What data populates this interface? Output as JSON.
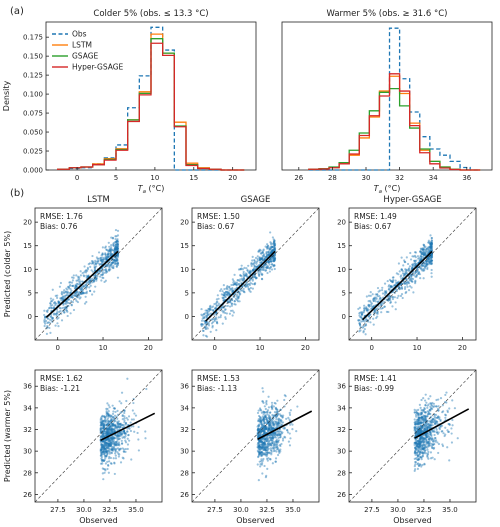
{
  "chart_data": [
    {
      "id": "hist-cold",
      "type": "histogram",
      "panel_label": "(a)",
      "title": "Colder 5% (obs. ≤ 13.3 °C)",
      "xlabel": "T_a (°C)",
      "ylabel": "Density",
      "xlim": [
        -4,
        23
      ],
      "ylim": [
        0,
        0.195
      ],
      "xticks": [
        0,
        5,
        10,
        15,
        20
      ],
      "yticks": [
        0,
        0.025,
        0.05,
        0.075,
        0.1,
        0.125,
        0.15,
        0.175
      ],
      "ytick_labels": [
        "0.000",
        "0.025",
        "0.050",
        "0.075",
        "0.100",
        "0.125",
        "0.150",
        "0.175"
      ],
      "bins": [
        -2.5,
        -1,
        0.5,
        2,
        3.5,
        5,
        6.5,
        8,
        9.5,
        11,
        12.5,
        14,
        15.5,
        17,
        18.5,
        20,
        21.5
      ],
      "legend": [
        "Obs",
        "LSTM",
        "GSAGE",
        "Hyper-GSAGE"
      ],
      "series": [
        {
          "name": "Obs",
          "color": "#1f77b4",
          "dashed": true,
          "values": [
            0.001,
            0.002,
            0.003,
            0.008,
            0.016,
            0.033,
            0.082,
            0.124,
            0.188,
            0.158,
            0,
            0,
            0,
            0,
            0,
            0
          ]
        },
        {
          "name": "LSTM",
          "color": "#ff7f0e",
          "dashed": false,
          "values": [
            0.001,
            0.003,
            0.004,
            0.008,
            0.015,
            0.028,
            0.066,
            0.103,
            0.179,
            0.154,
            0.063,
            0.009,
            0.003,
            0.001,
            0,
            0
          ]
        },
        {
          "name": "GSAGE",
          "color": "#2ca02c",
          "dashed": false,
          "values": [
            0.001,
            0.003,
            0.004,
            0.007,
            0.014,
            0.027,
            0.066,
            0.101,
            0.173,
            0.154,
            0.058,
            0.007,
            0.002,
            0.001,
            0,
            0
          ]
        },
        {
          "name": "Hyper-GSAGE",
          "color": "#d62728",
          "dashed": false,
          "values": [
            0.001,
            0.003,
            0.004,
            0.007,
            0.013,
            0.026,
            0.064,
            0.099,
            0.167,
            0.151,
            0.057,
            0.006,
            0.002,
            0.001,
            0,
            0
          ]
        }
      ]
    },
    {
      "id": "hist-warm",
      "type": "histogram",
      "title": "Warmer 5% (obs. ≥ 31.6 °C)",
      "xlabel": "T_a (°C)",
      "xlim": [
        25,
        37.5
      ],
      "ylim": [
        0,
        0.6
      ],
      "xticks": [
        26,
        28,
        30,
        32,
        34,
        36
      ],
      "bins": [
        26.6,
        27.2,
        27.8,
        28.4,
        29,
        29.6,
        30.2,
        30.8,
        31.4,
        32,
        32.6,
        33.2,
        33.8,
        34.4,
        35,
        35.6,
        36.2,
        36.8
      ],
      "series": [
        {
          "name": "Obs",
          "color": "#1f77b4",
          "dashed": true,
          "values": [
            0,
            0,
            0,
            0,
            0,
            0,
            0,
            0,
            0.575,
            0.37,
            0.235,
            0.135,
            0.085,
            0.06,
            0.035,
            0.01,
            0
          ]
        },
        {
          "name": "LSTM",
          "color": "#ff7f0e",
          "dashed": false,
          "values": [
            0.003,
            0.005,
            0.01,
            0.025,
            0.06,
            0.13,
            0.215,
            0.32,
            0.38,
            0.31,
            0.19,
            0.08,
            0.035,
            0.012,
            0.003,
            0,
            0
          ]
        },
        {
          "name": "GSAGE",
          "color": "#2ca02c",
          "dashed": false,
          "values": [
            0.003,
            0.005,
            0.012,
            0.03,
            0.08,
            0.15,
            0.24,
            0.315,
            0.33,
            0.26,
            0.17,
            0.085,
            0.035,
            0.012,
            0.003,
            0,
            0
          ]
        },
        {
          "name": "Hyper-GSAGE",
          "color": "#d62728",
          "dashed": false,
          "values": [
            0.003,
            0.004,
            0.009,
            0.025,
            0.065,
            0.14,
            0.22,
            0.3,
            0.39,
            0.32,
            0.18,
            0.07,
            0.025,
            0.008,
            0.002,
            0,
            0
          ]
        }
      ]
    },
    {
      "id": "sc-lstm-cold",
      "type": "scatter",
      "panel_label": "(b)",
      "title": "LSTM",
      "ylabel": "Predicted (colder 5%)",
      "xlim": [
        -5,
        23
      ],
      "ylim": [
        -5,
        23
      ],
      "xticks": [
        0,
        10,
        20
      ],
      "yticks": [
        0,
        5,
        10,
        15,
        20
      ],
      "rmse_label": "RMSE: 1.76",
      "bias_label": "Bias: 0.76",
      "obs_range": [
        -3,
        13.3
      ],
      "fit": {
        "x": [
          -2.5,
          13.3
        ],
        "y": [
          -0.2,
          13.8
        ]
      },
      "point_color": "#1f77b4"
    },
    {
      "id": "sc-gsage-cold",
      "type": "scatter",
      "title": "GSAGE",
      "xlim": [
        -5,
        23
      ],
      "ylim": [
        -5,
        23
      ],
      "xticks": [
        0,
        10,
        20
      ],
      "yticks": [
        0,
        5,
        10,
        15,
        20
      ],
      "rmse_label": "RMSE: 1.50",
      "bias_label": "Bias: 0.67",
      "obs_range": [
        -3,
        13.3
      ],
      "fit": {
        "x": [
          -2,
          13.3
        ],
        "y": [
          -1,
          13.8
        ]
      },
      "point_color": "#1f77b4"
    },
    {
      "id": "sc-hyper-cold",
      "type": "scatter",
      "title": "Hyper-GSAGE",
      "xlim": [
        -5,
        23
      ],
      "ylim": [
        -5,
        23
      ],
      "xticks": [
        0,
        10,
        20
      ],
      "yticks": [
        0,
        5,
        10,
        15,
        20
      ],
      "rmse_label": "RMSE: 1.49",
      "bias_label": "Bias: 0.67",
      "obs_range": [
        -3,
        13.3
      ],
      "fit": {
        "x": [
          -2,
          13.3
        ],
        "y": [
          -0.7,
          13.8
        ]
      },
      "point_color": "#1f77b4"
    },
    {
      "id": "sc-lstm-warm",
      "type": "scatter",
      "ylabel": "Predicted (warmer 5%)",
      "xlabel": "Observed",
      "xlim": [
        25.3,
        37.5
      ],
      "ylim": [
        25.3,
        37.5
      ],
      "xticks": [
        27.5,
        30,
        32.5,
        35
      ],
      "yticks": [
        26,
        28,
        30,
        32,
        34,
        36
      ],
      "xtick_labels": [
        "27.5",
        "30.0",
        "32.5",
        "35.0"
      ],
      "rmse_label": "RMSE: 1.62",
      "bias_label": "Bias: -1.21",
      "obs_range": [
        31.6,
        36.8
      ],
      "fit": {
        "x": [
          31.6,
          36.8
        ],
        "y": [
          31,
          33.5
        ]
      },
      "point_color": "#1f77b4"
    },
    {
      "id": "sc-gsage-warm",
      "type": "scatter",
      "xlabel": "Observed",
      "xlim": [
        25.3,
        37.5
      ],
      "ylim": [
        25.3,
        37.5
      ],
      "xticks": [
        27.5,
        30,
        32.5,
        35
      ],
      "yticks": [
        26,
        28,
        30,
        32,
        34,
        36
      ],
      "xtick_labels": [
        "27.5",
        "30.0",
        "32.5",
        "35.0"
      ],
      "rmse_label": "RMSE: 1.53",
      "bias_label": "Bias: -1.13",
      "obs_range": [
        31.6,
        36.8
      ],
      "fit": {
        "x": [
          31.6,
          36.8
        ],
        "y": [
          31.1,
          33.7
        ]
      },
      "point_color": "#1f77b4"
    },
    {
      "id": "sc-hyper-warm",
      "type": "scatter",
      "xlabel": "Observed",
      "xlim": [
        25.3,
        37.5
      ],
      "ylim": [
        25.3,
        37.5
      ],
      "xticks": [
        27.5,
        30,
        32.5,
        35
      ],
      "yticks": [
        26,
        28,
        30,
        32,
        34,
        36
      ],
      "xtick_labels": [
        "27.5",
        "30.0",
        "32.5",
        "35.0"
      ],
      "rmse_label": "RMSE: 1.41",
      "bias_label": "Bias: -0.99",
      "obs_range": [
        31.6,
        36.8
      ],
      "fit": {
        "x": [
          31.6,
          36.8
        ],
        "y": [
          31.2,
          33.9
        ]
      },
      "point_color": "#1f77b4"
    }
  ]
}
